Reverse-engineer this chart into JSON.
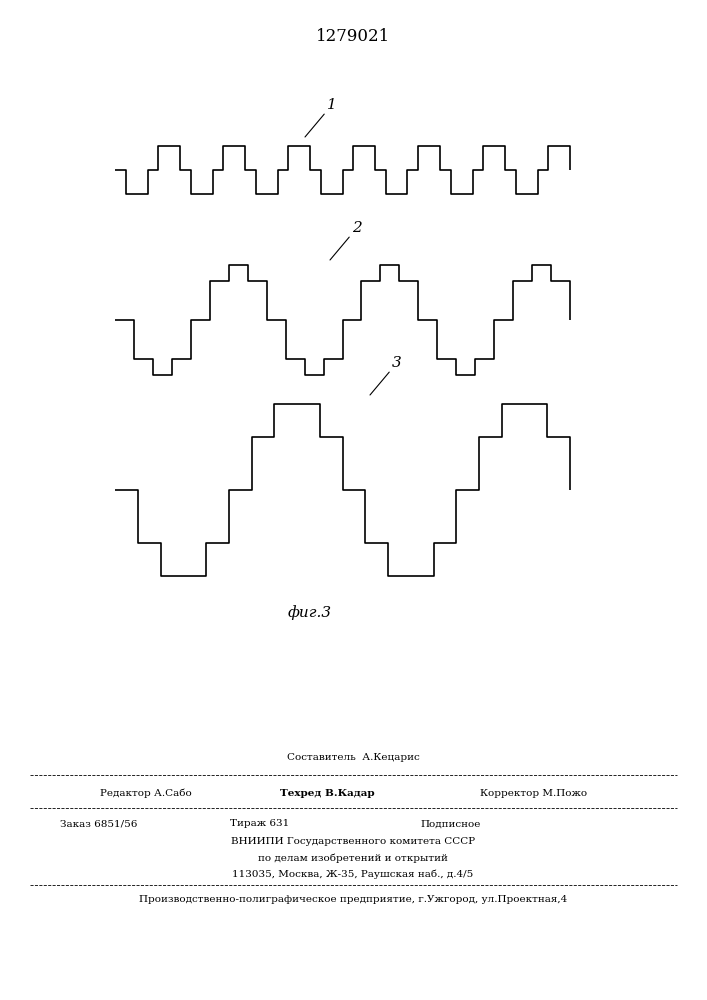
{
  "title": "1279021",
  "fig_label": "фиг.3",
  "bg_color": "#ffffff",
  "line_color": "#000000",
  "line_width": 1.2,
  "waveform1_label": "1",
  "waveform2_label": "2",
  "waveform3_label": "3",
  "footer_line0": "Составитель  А.Кецарис",
  "footer_line1a": "Редактор А.Сабо",
  "footer_line1b": "Техред В.Кадар",
  "footer_line1c": "Корректор М.Пожо",
  "footer_line2a": "Заказ 6851/56",
  "footer_line2b": "Тираж 631",
  "footer_line2c": "Подписное",
  "footer_line3": "ВНИИПИ Государственного комитета СССР",
  "footer_line4": "по делам изобретений и открытий",
  "footer_line5": "113035, Москва, Ж-35, Раушская наб., д.4/5",
  "footer_line6": "Производственно-полиграфическое предприятие, г.Ужгород, ул.Проектная,4"
}
